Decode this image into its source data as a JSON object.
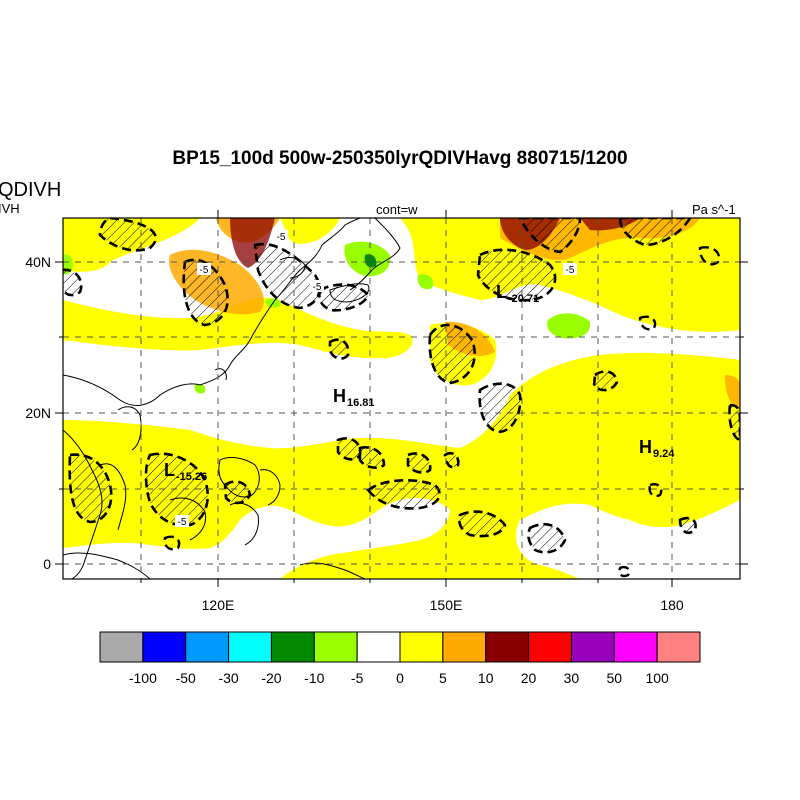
{
  "title": "BP15_100d 500w-250350lyrQDIVHavg  880715/1200",
  "left_title": "QDIVH",
  "left_subtitle": "IVH",
  "center_label": "cont=w",
  "units": "Pa s^-1",
  "map": {
    "lat_ticks": [
      "40N",
      "20N",
      "0"
    ],
    "lon_ticks": [
      "120E",
      "150E",
      "180"
    ],
    "extrema": [
      {
        "letter": "H",
        "value": "16.81"
      },
      {
        "letter": "H",
        "value": "9.24"
      },
      {
        "letter": "L",
        "value": "-20.71"
      },
      {
        "letter": "L",
        "value": "-15.26"
      }
    ],
    "contour_labels": [
      "-5",
      "-5",
      "-5",
      "-5",
      "-5"
    ]
  },
  "colorbar": {
    "colors": [
      "#aaaaaa",
      "#0000ff",
      "#0099ff",
      "#00ffff",
      "#008800",
      "#99ff00",
      "#ffffff",
      "#ffff00",
      "#ffaa00",
      "#880000",
      "#ff0000",
      "#9900bb",
      "#ff00ff",
      "#ff8080"
    ],
    "labels": [
      "-100",
      "-50",
      "-30",
      "-20",
      "-10",
      "-5",
      "0",
      "5",
      "10",
      "20",
      "30",
      "50",
      "100"
    ]
  }
}
